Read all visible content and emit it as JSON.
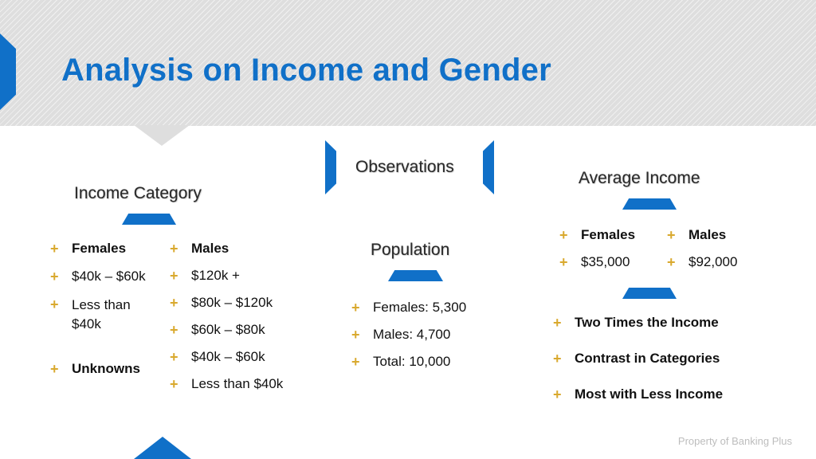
{
  "title": "Analysis on Income and Gender",
  "income_category": {
    "heading": "Income Category",
    "females": [
      "Females",
      "$40k – $60k",
      "Less than",
      "$40k"
    ],
    "unknowns": "Unknowns",
    "males": [
      "Males",
      "$120k +",
      "$80k – $120k",
      "$60k – $80k",
      "$40k – $60k",
      "Less than $40k"
    ]
  },
  "observations": {
    "heading": "Observations",
    "population_heading": "Population",
    "population": [
      "Females: 5,300",
      "Males: 4,700",
      "Total: 10,000"
    ]
  },
  "average_income": {
    "heading": "Average Income",
    "females_label": "Females",
    "females_value": "$35,000",
    "males_label": "Males",
    "males_value": "$92,000",
    "findings": [
      "Two Times the Income",
      "Contrast in Categories",
      "Most with Less Income"
    ]
  },
  "bullet_icon": "plus-sparkle-icon",
  "footer": "Property of Banking Plus",
  "colors": {
    "accent": "#1070c8",
    "bullet": "#d9a92e",
    "banner": "#dedede"
  }
}
